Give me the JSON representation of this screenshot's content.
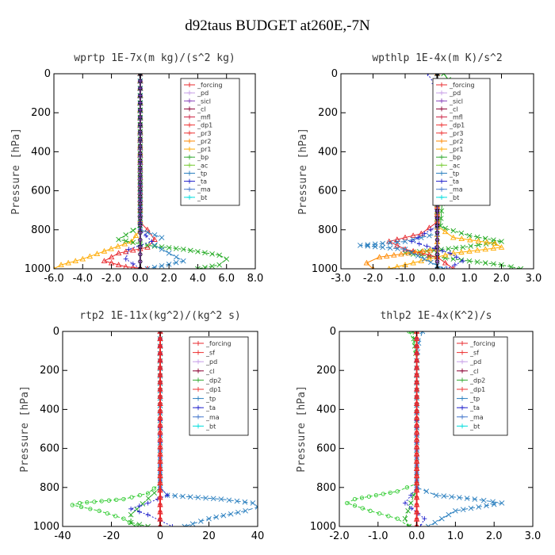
{
  "title": "d92taus  BUDGET at260E,-7N",
  "chart_data": [
    {
      "type": "line",
      "title": "wprtp  1E-7x(m kg)/(s^2 kg)",
      "ylabel": "Pressure [hPa]",
      "ylim": [
        1000,
        0
      ],
      "yticks": [
        "0",
        "200",
        "400",
        "600",
        "800",
        "1000"
      ],
      "xlim": [
        -6,
        8
      ],
      "xticks": [
        "-6.0",
        "-4.0",
        "-2.0",
        "0.0",
        "2.0",
        "4.0",
        "6.0",
        "8.0"
      ],
      "legend": [
        "_forcing",
        "_pd",
        "_sicl",
        "_cl",
        "_mfl",
        "_dp1",
        "_pr3",
        "_pr2",
        "_pr1",
        "_bp",
        "_ac",
        "_tp",
        "_ta",
        "_ma",
        "_bt"
      ],
      "series": [
        {
          "name": "_pr1",
          "color": "#ffaa00",
          "marker": "tri",
          "dash": "",
          "x": [
            0,
            0,
            0,
            -0.6,
            -2.5,
            -4.0,
            -5.5,
            -6.0
          ],
          "y": [
            0,
            700,
            800,
            860,
            910,
            950,
            980,
            1000
          ]
        },
        {
          "name": "_pr3",
          "color": "#e8282c",
          "marker": "tri",
          "dash": "",
          "x": [
            0,
            0,
            0.5,
            1.0,
            0.5,
            -1.5,
            -2.5,
            -1.0,
            0.5
          ],
          "y": [
            0,
            760,
            800,
            850,
            890,
            920,
            960,
            990,
            1000
          ]
        },
        {
          "name": "_bp",
          "color": "#22aa22",
          "marker": "x",
          "dash": "4,2",
          "x": [
            0,
            0,
            -1.5,
            0.5,
            3.0,
            5.5,
            6.0,
            5.5,
            4.0
          ],
          "y": [
            0,
            780,
            850,
            880,
            900,
            930,
            950,
            980,
            1000
          ]
        },
        {
          "name": "_tp",
          "color": "#2a7fbf",
          "marker": "x",
          "dash": "6,3",
          "x": [
            0,
            0,
            1.5,
            1.0,
            2.0,
            3.0,
            1.5,
            0.5
          ],
          "y": [
            0,
            800,
            840,
            880,
            920,
            960,
            985,
            1000
          ]
        },
        {
          "name": "_ta",
          "color": "#2020cc",
          "marker": "plus",
          "dash": "2,2",
          "x": [
            0,
            0,
            0.8,
            0.0,
            -0.8,
            -1.0,
            0.0
          ],
          "y": [
            0,
            800,
            860,
            880,
            900,
            950,
            1000
          ]
        },
        {
          "name": "_forcing",
          "color": "#000000",
          "marker": "circle",
          "dash": "",
          "x": [
            0,
            0
          ],
          "y": [
            0,
            1000
          ]
        },
        {
          "name": "_sicl",
          "color": "#8844bb",
          "marker": "plus",
          "dash": "",
          "x": [
            0,
            0
          ],
          "y": [
            0,
            1000
          ]
        }
      ]
    },
    {
      "type": "line",
      "title": "wpthlp  1E-4x(m K)/s^2",
      "ylabel": "Pressure [hPa]",
      "ylim": [
        1000,
        0
      ],
      "yticks": [
        "0",
        "200",
        "400",
        "600",
        "800",
        "1000"
      ],
      "xlim": [
        -3,
        3
      ],
      "xticks": [
        "-3.0",
        "-2.0",
        "-1.0",
        "0.0",
        "1.0",
        "2.0",
        "3.0"
      ],
      "legend": [
        "_forcing",
        "_pd",
        "_sicl",
        "_cl",
        "_mfl",
        "_dp1",
        "_pr3",
        "_pr2",
        "_pr1",
        "_bp",
        "_ac",
        "_tp",
        "_ta",
        "_ma",
        "_bt"
      ],
      "series": [
        {
          "name": "_ac",
          "color": "#22aa22",
          "marker": "x",
          "dash": "",
          "x": [
            0.2,
            0.5,
            0.4,
            0.3,
            0.3,
            0.2,
            0.1
          ],
          "y": [
            0,
            60,
            120,
            200,
            350,
            550,
            780
          ]
        },
        {
          "name": "_bp",
          "color": "#22aa22",
          "marker": "x",
          "dash": "4,2",
          "x": [
            0,
            0,
            1.0,
            2.0,
            0.8,
            -1.0,
            0.5,
            2.0,
            2.6
          ],
          "y": [
            0,
            780,
            830,
            860,
            890,
            920,
            950,
            980,
            1000
          ]
        },
        {
          "name": "_pr1",
          "color": "#ffaa00",
          "marker": "tri",
          "dash": "",
          "x": [
            0,
            0,
            0.5,
            1.8,
            2.0,
            0.5,
            -0.5,
            -1.5
          ],
          "y": [
            0,
            780,
            840,
            870,
            890,
            920,
            960,
            1000
          ]
        },
        {
          "name": "_pr3",
          "color": "#e8282c",
          "marker": "tri",
          "dash": "",
          "x": [
            0,
            0,
            -0.5,
            -1.5,
            -1.0,
            0.0,
            0.5
          ],
          "y": [
            0,
            760,
            820,
            860,
            900,
            940,
            1000
          ]
        },
        {
          "name": "_pr2",
          "color": "#ff8800",
          "marker": "tri",
          "dash": "",
          "x": [
            0,
            0,
            -1.8,
            -2.2,
            -2.0
          ],
          "y": [
            0,
            900,
            940,
            970,
            1000
          ]
        },
        {
          "name": "_tp",
          "color": "#2a7fbf",
          "marker": "x",
          "dash": "6,3",
          "x": [
            0,
            0,
            -1.0,
            -2.4,
            -1.0,
            0.2
          ],
          "y": [
            0,
            820,
            860,
            880,
            900,
            1000
          ]
        },
        {
          "name": "_ta",
          "color": "#2020cc",
          "marker": "plus",
          "dash": "2,2",
          "x": [
            -0.3,
            -0.1,
            0,
            0,
            -0.8,
            0.4,
            0.8,
            0.3
          ],
          "y": [
            0,
            50,
            150,
            780,
            860,
            920,
            960,
            1000
          ]
        },
        {
          "name": "_forcing",
          "color": "#000000",
          "marker": "circle",
          "dash": "",
          "x": [
            0,
            0
          ],
          "y": [
            0,
            1000
          ]
        },
        {
          "name": "_sicl",
          "color": "#8844bb",
          "marker": "plus",
          "dash": "",
          "x": [
            0,
            0
          ],
          "y": [
            0,
            1000
          ]
        }
      ]
    },
    {
      "type": "line",
      "title": "rtp2  1E-11x(kg^2)/(kg^2 s)",
      "ylabel": "Pressure [hPa]",
      "ylim": [
        1000,
        0
      ],
      "yticks": [
        "0",
        "200",
        "400",
        "600",
        "800",
        "1000"
      ],
      "xlim": [
        -40,
        40
      ],
      "xticks": [
        "-40",
        "-20",
        "0",
        "20",
        "40"
      ],
      "legend": [
        "_forcing",
        "_sf",
        "_pd",
        "_cl",
        "_dp2",
        "_dp1",
        "_tp",
        "_ta",
        "_ma",
        "_bt"
      ],
      "series": [
        {
          "name": "_dp1",
          "color": "#33cc33",
          "marker": "circle",
          "dash": "4,2",
          "x": [
            0,
            0,
            -5,
            -15,
            -33,
            -36,
            -25,
            -15,
            -10
          ],
          "y": [
            0,
            780,
            830,
            860,
            880,
            890,
            920,
            960,
            1000
          ]
        },
        {
          "name": "_dp2",
          "color": "#22aa22",
          "marker": "x",
          "dash": "4,2",
          "x": [
            0,
            0,
            -12,
            -12,
            -5
          ],
          "y": [
            0,
            800,
            940,
            980,
            1000
          ]
        },
        {
          "name": "_tp",
          "color": "#2a7fbf",
          "marker": "x",
          "dash": "6,3",
          "x": [
            0,
            0,
            3,
            25,
            38,
            40,
            35,
            20,
            10
          ],
          "y": [
            0,
            800,
            840,
            860,
            880,
            900,
            920,
            960,
            1000
          ]
        },
        {
          "name": "_ta",
          "color": "#2020cc",
          "marker": "plus",
          "dash": "2,2",
          "x": [
            0,
            0,
            3,
            -5,
            -12,
            -5,
            0,
            5
          ],
          "y": [
            0,
            800,
            840,
            880,
            910,
            940,
            970,
            1000
          ]
        },
        {
          "name": "_forcing",
          "color": "#e8282c",
          "marker": "circle",
          "dash": "",
          "x": [
            0,
            0
          ],
          "y": [
            0,
            1000
          ]
        },
        {
          "name": "_sf",
          "color": "#e8282c",
          "marker": "tri",
          "dash": "",
          "x": [
            0,
            0
          ],
          "y": [
            0,
            1000
          ]
        }
      ]
    },
    {
      "type": "line",
      "title": "thlp2  1E-4x(K^2)/s",
      "ylabel": "Pressure [hPa]",
      "ylim": [
        1000,
        0
      ],
      "yticks": [
        "0",
        "200",
        "400",
        "600",
        "800",
        "1000"
      ],
      "xlim": [
        -2,
        3
      ],
      "xticks": [
        "-2.0",
        "-1.0",
        "0.0",
        "1.0",
        "2.0",
        "3.0"
      ],
      "legend": [
        "_forcing",
        "_sf",
        "_pd",
        "_cl",
        "_dp2",
        "_dp1",
        "_tp",
        "_ta",
        "_ma",
        "_bt"
      ],
      "series": [
        {
          "name": "_dp1",
          "color": "#33cc33",
          "marker": "circle",
          "dash": "4,2",
          "x": [
            -0.2,
            -0.05,
            0,
            0,
            -0.5,
            -1.6,
            -1.8,
            -1.2,
            -0.5,
            -0.2
          ],
          "y": [
            0,
            60,
            150,
            780,
            820,
            860,
            880,
            920,
            960,
            1000
          ]
        },
        {
          "name": "_dp2",
          "color": "#22aa22",
          "marker": "x",
          "dash": "4,2",
          "x": [
            -0.1,
            0,
            0,
            -0.3,
            -0.2
          ],
          "y": [
            0,
            150,
            800,
            960,
            1000
          ]
        },
        {
          "name": "_tp",
          "color": "#2a7fbf",
          "marker": "x",
          "dash": "6,3",
          "x": [
            0.15,
            0.05,
            0,
            0,
            0.5,
            1.5,
            2.2,
            1.0,
            0.3
          ],
          "y": [
            0,
            60,
            150,
            800,
            840,
            860,
            880,
            920,
            1000
          ]
        },
        {
          "name": "_ta",
          "color": "#2020cc",
          "marker": "plus",
          "dash": "2,2",
          "x": [
            0,
            0,
            -0.3,
            0.2,
            0.1
          ],
          "y": [
            0,
            800,
            880,
            960,
            1000
          ]
        },
        {
          "name": "_forcing",
          "color": "#e8282c",
          "marker": "circle",
          "dash": "",
          "x": [
            0,
            0
          ],
          "y": [
            0,
            1000
          ]
        },
        {
          "name": "_sf",
          "color": "#e8282c",
          "marker": "tri",
          "dash": "",
          "x": [
            0,
            0
          ],
          "y": [
            0,
            1000
          ]
        }
      ]
    }
  ],
  "legend_colors": {
    "_forcing": "#e8282c",
    "_pd": "#c8a0e8",
    "_sicl": "#8844bb",
    "_cl": "#8b0033",
    "_mfl": "#cc2244",
    "_dp1": "#ee3333",
    "_dp2": "#33aa33",
    "_pr3": "#ee3333",
    "_pr2": "#ff8800",
    "_pr1": "#ffaa00",
    "_bp": "#33aa33",
    "_ac": "#77cc33",
    "_tp": "#2a7fbf",
    "_ta": "#2020cc",
    "_ma": "#4477cc",
    "_bt": "#00dddd",
    "_sf": "#ee3333"
  }
}
